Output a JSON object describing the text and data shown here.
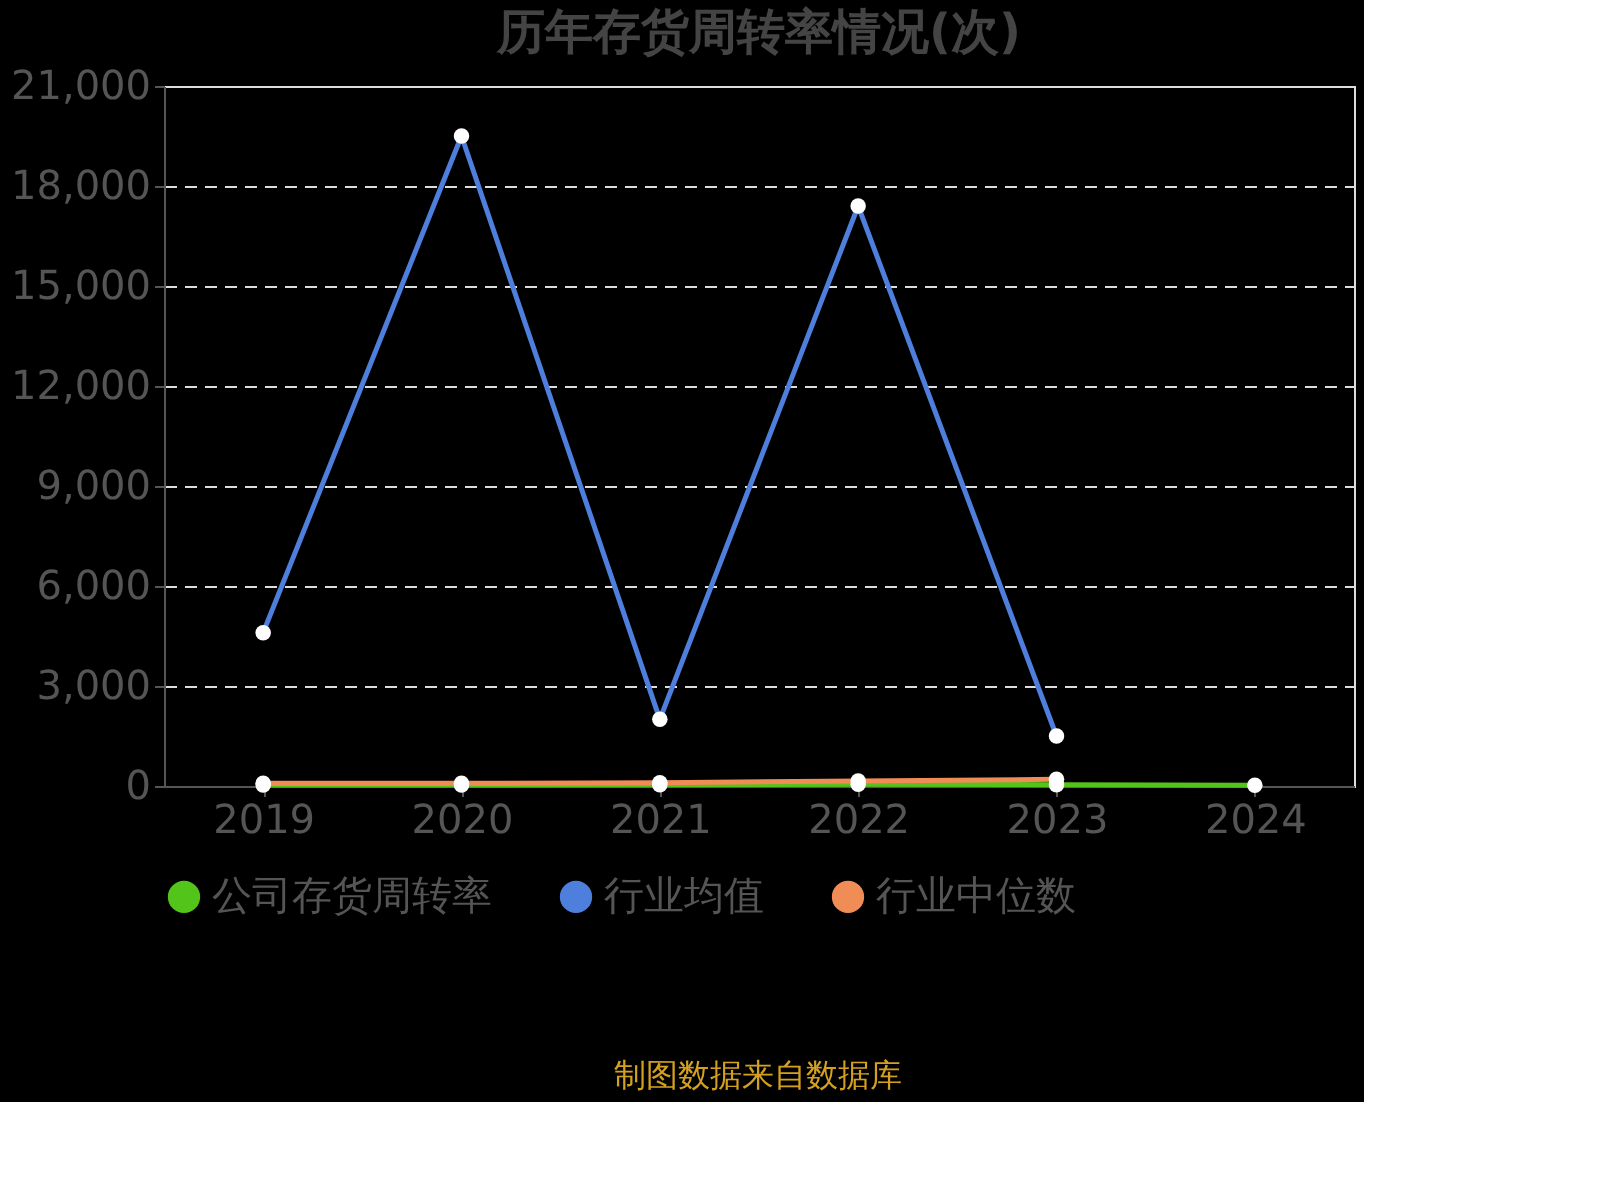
{
  "chart_data": {
    "type": "line",
    "title": "历年存货周转率情况(次)",
    "categories": [
      "2019",
      "2020",
      "2021",
      "2022",
      "2023",
      "2024"
    ],
    "series": [
      {
        "name": "公司存货周转率",
        "color": "#52c41a",
        "values": [
          30,
          30,
          40,
          50,
          40,
          20
        ]
      },
      {
        "name": "行业均值",
        "color": "#4e7fdc",
        "values": [
          4600,
          19500,
          2000,
          17400,
          1500,
          null
        ]
      },
      {
        "name": "行业中位数",
        "color": "#f08c55",
        "values": [
          80,
          80,
          100,
          150,
          200,
          null
        ]
      }
    ],
    "ylim": [
      0,
      21000
    ],
    "yticks": [
      {
        "value": 0,
        "label": "0"
      },
      {
        "value": 3000,
        "label": "3,000"
      },
      {
        "value": 6000,
        "label": "6,000"
      },
      {
        "value": 9000,
        "label": "9,000"
      },
      {
        "value": 12000,
        "label": "12,000"
      },
      {
        "value": 15000,
        "label": "15,000"
      },
      {
        "value": 18000,
        "label": "18,000"
      },
      {
        "value": 21000,
        "label": "21,000"
      }
    ],
    "grid": "y",
    "legend": "bottom",
    "marker": "circle",
    "line_style": "solid",
    "annotations": [
      "制图数据来自数据库"
    ]
  }
}
